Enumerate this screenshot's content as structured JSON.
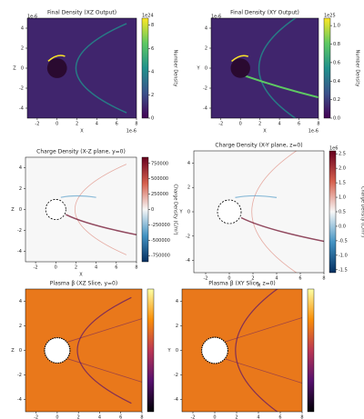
{
  "chart_data": [
    {
      "type": "heatmap",
      "cmap": "viridis",
      "title": "Final Density (XZ Output)",
      "x_label": "X",
      "y_label": "Z",
      "x_offset": "1e-6",
      "y_offset": "1e-6",
      "xlim": [
        -3,
        8
      ],
      "ylim": [
        -5,
        5
      ],
      "xticks": [
        -2,
        0,
        2,
        4,
        6,
        8
      ],
      "yticks": [
        -4,
        -2,
        0,
        2,
        4
      ],
      "colorbar": {
        "label": "Number Density",
        "offset": "1e24",
        "lim": [
          0,
          8.6
        ],
        "ticks": [
          0,
          2,
          4,
          6,
          8
        ],
        "colors": [
          "#440154",
          "#3b528b",
          "#21918c",
          "#5ec962",
          "#fde725"
        ]
      }
    },
    {
      "type": "heatmap",
      "cmap": "viridis",
      "title": "Final Density (XY Output)",
      "x_label": "X",
      "y_label": "Y",
      "x_offset": "1e-6",
      "y_offset": "1e-6",
      "xlim": [
        -3,
        8
      ],
      "ylim": [
        -5,
        5
      ],
      "xticks": [
        -2,
        0,
        2,
        4,
        6,
        8
      ],
      "yticks": [
        -4,
        -2,
        0,
        2,
        4
      ],
      "colorbar": {
        "label": "Number Density",
        "offset": "1e25",
        "lim": [
          0,
          1.08
        ],
        "ticks": [
          {
            "value": 0,
            "label": "0.0"
          },
          0.2,
          0.4,
          0.6,
          0.8,
          {
            "value": 1,
            "label": "1.0"
          }
        ],
        "colors": [
          "#440154",
          "#3b528b",
          "#21918c",
          "#5ec962",
          "#fde725"
        ]
      }
    },
    {
      "type": "heatmap",
      "cmap": "RdBu_r",
      "title": "Charge Density (X-Z plane, y=0)",
      "x_label": "X",
      "y_label": "Z",
      "xlim": [
        -3,
        8
      ],
      "ylim": [
        -5,
        5
      ],
      "xticks": [
        -2,
        0,
        2,
        4,
        6,
        8
      ],
      "yticks": [
        -4,
        -2,
        0,
        2,
        4
      ],
      "colorbar": {
        "label": "Charge Density (C/m³)",
        "lim": [
          -850000,
          850000
        ],
        "ticks": [
          -750000,
          -500000,
          -250000,
          0,
          250000,
          500000,
          750000
        ],
        "colors": [
          "#053061",
          "#4393c3",
          "#f7f7f7",
          "#d6604d",
          "#67001f"
        ]
      }
    },
    {
      "type": "heatmap",
      "cmap": "RdBu_r",
      "title": "Charge Density (X-Y plane, z=0)",
      "x_label": "X",
      "y_label": "Y",
      "xlim": [
        -3,
        8
      ],
      "ylim": [
        -5,
        5
      ],
      "xticks": [
        -2,
        0,
        2,
        4,
        6,
        8
      ],
      "yticks": [
        -4,
        -2,
        0,
        2,
        4
      ],
      "colorbar": {
        "label": "Charge Density (C/m³)",
        "offset": "1e6",
        "lim": [
          -1.6,
          2.6
        ],
        "ticks": [
          -1.5,
          {
            "value": -1,
            "label": "-1.0"
          },
          -0.5,
          {
            "value": 0,
            "label": "0.0"
          },
          0.5,
          {
            "value": 1,
            "label": "1.0"
          },
          1.5,
          {
            "value": 2,
            "label": "2.0"
          },
          2.5
        ],
        "colors": [
          "#053061",
          "#4393c3",
          "#f7f7f7",
          "#d6604d",
          "#67001f"
        ]
      }
    },
    {
      "type": "heatmap",
      "cmap": "inferno",
      "title": "Plasma β (XZ Slice, y=0)",
      "x_label": "X",
      "y_label": "Z",
      "xlim": [
        -3,
        8
      ],
      "ylim": [
        -5,
        5
      ],
      "xticks": [
        -2,
        0,
        2,
        4,
        6,
        8
      ],
      "yticks": [
        -4,
        -2,
        0,
        2,
        4
      ],
      "colorbar": {
        "colors": [
          "#000004",
          "#56106e",
          "#bb3754",
          "#f98e09",
          "#fcffa4"
        ]
      }
    },
    {
      "type": "heatmap",
      "cmap": "inferno",
      "title": "Plasma β (XY Slice, z=0)",
      "x_label": "X",
      "y_label": "Y",
      "xlim": [
        -3,
        8
      ],
      "ylim": [
        -5,
        5
      ],
      "xticks": [
        -2,
        0,
        2,
        4,
        6,
        8
      ],
      "yticks": [
        -4,
        -2,
        0,
        2,
        4
      ],
      "colorbar": {
        "colors": [
          "#000004",
          "#56106e",
          "#bb3754",
          "#f98e09",
          "#fcffa4"
        ]
      }
    }
  ]
}
